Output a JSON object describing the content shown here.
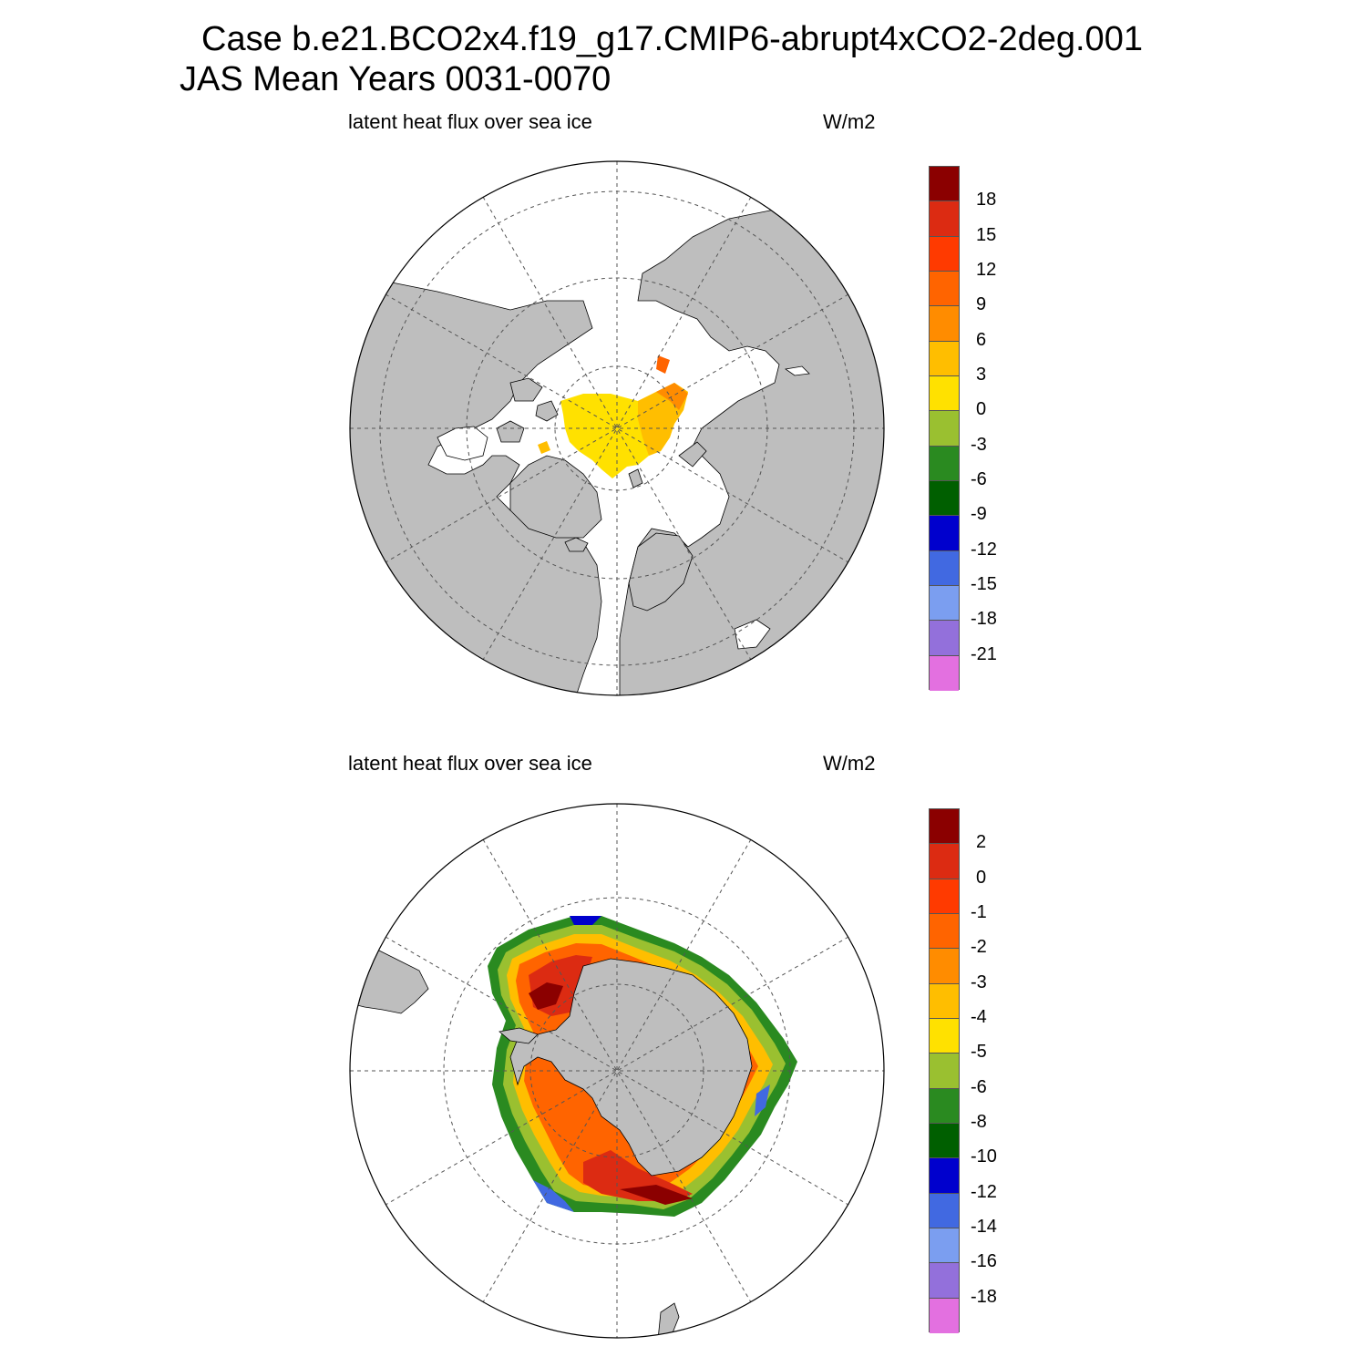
{
  "title": {
    "line1": "Case b.e21.BCO2x4.f19_g17.CMIP6-abrupt4xCO2-2deg.001",
    "line2": "JAS Mean   Years 0031-0070"
  },
  "panels": [
    {
      "name": "north",
      "left_label": "latent heat flux over sea ice",
      "right_label": "W/m2",
      "colorbar": {
        "colors": [
          "#8b0000",
          "#dc2b12",
          "#ff3a00",
          "#ff6400",
          "#ff8c00",
          "#ffbe00",
          "#ffe100",
          "#9ac030",
          "#2a8a20",
          "#005f00",
          "#0000cd",
          "#4169e1",
          "#7b9ef0",
          "#9370db",
          "#e370e0"
        ],
        "labels": [
          "18",
          "15",
          "12",
          "9",
          "6",
          "3",
          "0",
          "-3",
          "-6",
          "-9",
          "-12",
          "-15",
          "-18",
          "-21"
        ]
      }
    },
    {
      "name": "south",
      "left_label": "latent heat flux over sea ice",
      "right_label": "W/m2",
      "colorbar": {
        "colors": [
          "#8b0000",
          "#dc2b12",
          "#ff3a00",
          "#ff6400",
          "#ff8c00",
          "#ffbe00",
          "#ffe100",
          "#9ac030",
          "#2a8a20",
          "#005f00",
          "#0000cd",
          "#4169e1",
          "#7b9ef0",
          "#9370db",
          "#e370e0"
        ],
        "labels": [
          "2",
          "0",
          "-1",
          "-2",
          "-3",
          "-4",
          "-5",
          "-6",
          "-8",
          "-10",
          "-12",
          "-14",
          "-16",
          "-18"
        ]
      }
    }
  ],
  "colors": {
    "land": "#bebebe",
    "ocean": "#ffffff",
    "grid": "#555555"
  }
}
